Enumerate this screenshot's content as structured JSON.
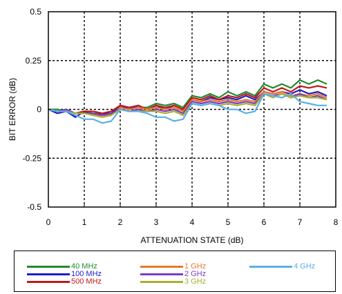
{
  "chart_data": {
    "type": "line",
    "title": "",
    "xlabel": "ATTENUATION STATE (dB)",
    "ylabel": "BIT ERROR (dB)",
    "xlim": [
      0,
      8
    ],
    "ylim": [
      -0.5,
      0.5
    ],
    "xticks": [
      0,
      1,
      2,
      3,
      4,
      5,
      6,
      7,
      8
    ],
    "xtick_labels": [
      "0",
      "1",
      "2",
      "3",
      "4",
      "5",
      "6",
      "7",
      "8"
    ],
    "yticks": [
      -0.5,
      -0.25,
      0,
      0.25,
      0.5
    ],
    "ytick_labels": [
      "-0.5",
      "-0.25",
      "0",
      "0.25",
      "0.5"
    ],
    "grid": true,
    "grid_style": "dotted",
    "legend_position": "bottom",
    "x": [
      0,
      0.25,
      0.5,
      0.75,
      1,
      1.25,
      1.5,
      1.75,
      2,
      2.25,
      2.5,
      2.75,
      3,
      3.25,
      3.5,
      3.75,
      4,
      4.25,
      4.5,
      4.75,
      5,
      5.25,
      5.5,
      5.75,
      6,
      6.25,
      6.5,
      6.75,
      7,
      7.25,
      7.5,
      7.75
    ],
    "series": [
      {
        "name": "40 MHz",
        "color": "#1f8a2e",
        "values": [
          0.0,
          0.0,
          -0.01,
          -0.02,
          -0.01,
          -0.02,
          -0.02,
          -0.03,
          0.02,
          0.01,
          0.01,
          0.01,
          0.03,
          0.02,
          0.03,
          0.01,
          0.07,
          0.06,
          0.08,
          0.06,
          0.09,
          0.07,
          0.09,
          0.07,
          0.13,
          0.11,
          0.13,
          0.11,
          0.15,
          0.13,
          0.15,
          0.13
        ]
      },
      {
        "name": "100 MHz",
        "color": "#1c1ccc",
        "values": [
          0.0,
          -0.02,
          -0.01,
          -0.04,
          -0.01,
          -0.03,
          -0.02,
          -0.02,
          0.02,
          0.0,
          0.02,
          0.0,
          0.02,
          0.0,
          0.02,
          0.0,
          0.05,
          0.04,
          0.06,
          0.05,
          0.06,
          0.05,
          0.07,
          0.05,
          0.09,
          0.08,
          0.09,
          0.08,
          0.1,
          0.08,
          0.09,
          0.07
        ]
      },
      {
        "name": "500 MHz",
        "color": "#c01818",
        "values": [
          0.0,
          -0.01,
          -0.01,
          -0.02,
          -0.01,
          -0.01,
          -0.02,
          -0.01,
          0.02,
          0.01,
          0.02,
          0.0,
          0.02,
          0.01,
          0.02,
          0.0,
          0.06,
          0.05,
          0.07,
          0.05,
          0.07,
          0.06,
          0.08,
          0.06,
          0.11,
          0.09,
          0.11,
          0.09,
          0.12,
          0.11,
          0.12,
          0.11
        ]
      },
      {
        "name": "1 GHz",
        "color": "#e8782a",
        "values": [
          0.0,
          -0.01,
          0.0,
          -0.02,
          -0.02,
          -0.03,
          -0.03,
          -0.03,
          0.01,
          0.0,
          0.01,
          0.0,
          0.01,
          0.0,
          0.01,
          -0.01,
          0.05,
          0.04,
          0.05,
          0.04,
          0.05,
          0.04,
          0.05,
          0.04,
          0.09,
          0.08,
          0.09,
          0.07,
          0.08,
          0.07,
          0.08,
          0.06
        ]
      },
      {
        "name": "2 GHz",
        "color": "#7a3cc2",
        "values": [
          0.0,
          -0.01,
          0.0,
          -0.02,
          -0.02,
          -0.02,
          -0.03,
          -0.02,
          0.0,
          -0.01,
          0.0,
          -0.01,
          0.0,
          -0.01,
          0.0,
          -0.02,
          0.04,
          0.03,
          0.04,
          0.03,
          0.04,
          0.03,
          0.04,
          0.03,
          0.08,
          0.07,
          0.08,
          0.06,
          0.08,
          0.06,
          0.07,
          0.05
        ]
      },
      {
        "name": "3 GHz",
        "color": "#a8b030",
        "values": [
          0.0,
          -0.01,
          -0.01,
          -0.02,
          -0.02,
          -0.03,
          -0.04,
          -0.03,
          0.0,
          -0.01,
          -0.01,
          -0.01,
          -0.01,
          -0.02,
          -0.01,
          -0.03,
          0.03,
          0.02,
          0.03,
          0.02,
          0.03,
          0.02,
          0.03,
          0.02,
          0.08,
          0.06,
          0.08,
          0.06,
          0.07,
          0.06,
          0.06,
          0.05
        ]
      },
      {
        "name": "4 GHz",
        "color": "#5aaee8",
        "values": [
          0.0,
          -0.01,
          -0.01,
          -0.03,
          -0.05,
          -0.05,
          -0.07,
          -0.06,
          0.0,
          -0.01,
          -0.01,
          -0.02,
          -0.04,
          -0.04,
          -0.06,
          -0.05,
          0.03,
          0.02,
          0.03,
          0.02,
          0.0,
          0.0,
          -0.02,
          -0.01,
          0.08,
          0.07,
          0.06,
          0.08,
          0.04,
          0.03,
          0.02,
          0.02
        ]
      }
    ]
  }
}
